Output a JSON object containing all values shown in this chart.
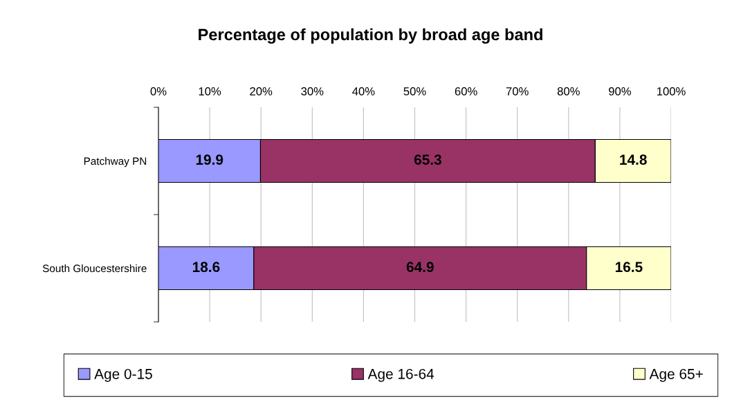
{
  "chart_data": {
    "type": "bar",
    "title": "Percentage of population by broad age band",
    "orientation": "horizontal",
    "stacked": true,
    "categories": [
      "Patchway PN",
      "South Gloucestershire"
    ],
    "series": [
      {
        "name": "Age 0-15",
        "color": "#9999ff",
        "values": [
          19.9,
          18.6
        ]
      },
      {
        "name": "Age 16-64",
        "color": "#993366",
        "values": [
          65.3,
          64.9
        ]
      },
      {
        "name": "Age 65+",
        "color": "#ffffcc",
        "values": [
          14.8,
          16.5
        ]
      }
    ],
    "xlim": [
      0,
      100
    ],
    "xticks": [
      {
        "value": 0,
        "label": "0%"
      },
      {
        "value": 10,
        "label": "10%"
      },
      {
        "value": 20,
        "label": "20%"
      },
      {
        "value": 30,
        "label": "30%"
      },
      {
        "value": 40,
        "label": "40%"
      },
      {
        "value": 50,
        "label": "50%"
      },
      {
        "value": 60,
        "label": "60%"
      },
      {
        "value": 70,
        "label": "70%"
      },
      {
        "value": 80,
        "label": "80%"
      },
      {
        "value": 90,
        "label": "90%"
      },
      {
        "value": 100,
        "label": "100%"
      }
    ],
    "grid": "x",
    "legend": "bottom",
    "data_labels": true
  }
}
